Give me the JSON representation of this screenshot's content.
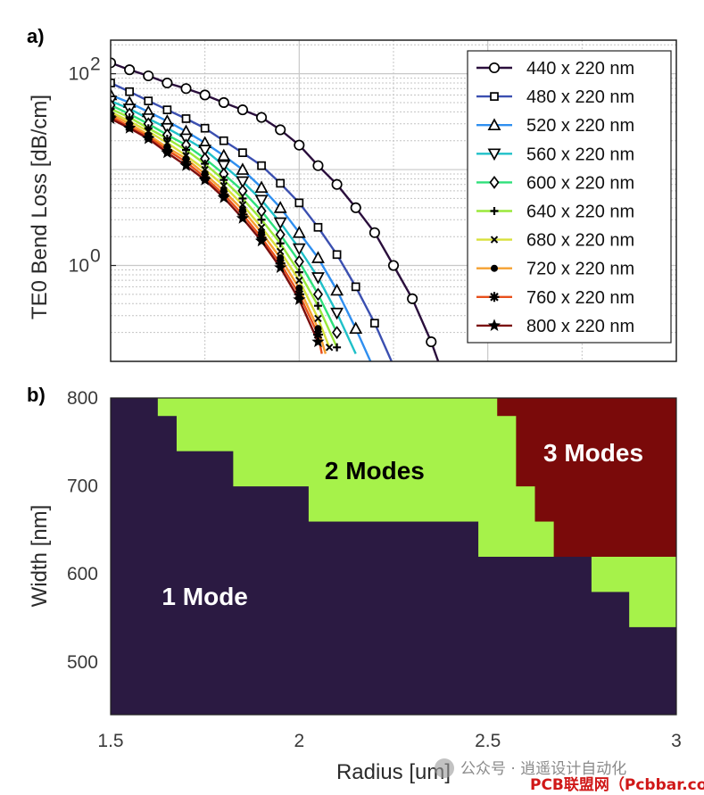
{
  "chart_data": [
    {
      "type": "line",
      "panel_label": "a)",
      "ylabel": "TE0 Bend Loss [dB/cm]",
      "yscale": "log",
      "xlim": [
        1.5,
        3
      ],
      "ylim_log10": [
        -1,
        2.35
      ],
      "ytick_labels": [
        {
          "exp": 0,
          "base": "10",
          "power": "0"
        },
        {
          "exp": 2,
          "base": "10",
          "power": "2"
        }
      ],
      "grid": true,
      "legend_position": "top-right",
      "series": [
        {
          "name": "440 x 220 nm",
          "color": "#2a0e3c",
          "marker": "circle",
          "x": [
            1.5,
            1.55,
            1.6,
            1.65,
            1.7,
            1.75,
            1.8,
            1.85,
            1.9,
            1.95,
            2.0,
            2.05,
            2.1,
            2.15,
            2.2,
            2.25,
            2.3,
            2.35,
            2.4,
            2.45,
            2.48
          ],
          "y": [
            130,
            110,
            95,
            80,
            70,
            60,
            50,
            42,
            35,
            26,
            18,
            11,
            7,
            4,
            2.2,
            1.0,
            0.45,
            0.16,
            0.045,
            0.012,
            0.005
          ]
        },
        {
          "name": "480 x 220 nm",
          "color": "#3b4fb0",
          "marker": "square",
          "x": [
            1.5,
            1.55,
            1.6,
            1.65,
            1.7,
            1.75,
            1.8,
            1.85,
            1.9,
            1.95,
            2.0,
            2.05,
            2.1,
            2.15,
            2.2,
            2.25,
            2.3
          ],
          "y": [
            80,
            65,
            52,
            42,
            34,
            27,
            20,
            15,
            11,
            7.2,
            4.5,
            2.5,
            1.3,
            0.6,
            0.25,
            0.09,
            0.03
          ]
        },
        {
          "name": "520 x 220 nm",
          "color": "#2f8ff0",
          "marker": "triangle-up",
          "x": [
            1.5,
            1.55,
            1.6,
            1.65,
            1.7,
            1.75,
            1.8,
            1.85,
            1.9,
            1.95,
            2.0,
            2.05,
            2.1,
            2.15,
            2.2
          ],
          "y": [
            60,
            50,
            40,
            32,
            25,
            19,
            14,
            10,
            6.5,
            4.0,
            2.2,
            1.2,
            0.55,
            0.22,
            0.08
          ]
        },
        {
          "name": "560 x 220 nm",
          "color": "#1fc0c8",
          "marker": "triangle-down",
          "x": [
            1.5,
            1.55,
            1.6,
            1.65,
            1.7,
            1.75,
            1.8,
            1.85,
            1.9,
            1.95,
            2.0,
            2.05,
            2.1,
            2.15
          ],
          "y": [
            52,
            43,
            34,
            27,
            21,
            16,
            11,
            7.5,
            4.8,
            2.8,
            1.5,
            0.75,
            0.32,
            0.12
          ]
        },
        {
          "name": "600 x 220 nm",
          "color": "#2ee07a",
          "marker": "diamond",
          "x": [
            1.5,
            1.55,
            1.6,
            1.65,
            1.7,
            1.75,
            1.8,
            1.85,
            1.9,
            1.95,
            2.0,
            2.05,
            2.1
          ],
          "y": [
            47,
            38,
            30,
            23,
            18,
            13,
            9,
            6,
            3.7,
            2.1,
            1.1,
            0.5,
            0.2
          ]
        },
        {
          "name": "640 x 220 nm",
          "color": "#9ae83a",
          "marker": "plus",
          "x": [
            1.5,
            1.55,
            1.6,
            1.65,
            1.7,
            1.75,
            1.8,
            1.85,
            1.9,
            1.95,
            2.0,
            2.05,
            2.1
          ],
          "y": [
            43,
            35,
            27,
            21,
            16,
            11.5,
            7.8,
            5.0,
            3.0,
            1.7,
            0.85,
            0.38,
            0.14
          ]
        },
        {
          "name": "680 x 220 nm",
          "color": "#d8e03a",
          "marker": "x",
          "x": [
            1.5,
            1.55,
            1.6,
            1.65,
            1.7,
            1.75,
            1.8,
            1.85,
            1.9,
            1.95,
            2.0,
            2.05,
            2.08
          ],
          "y": [
            40,
            32,
            25,
            19,
            14,
            10,
            6.8,
            4.3,
            2.5,
            1.4,
            0.7,
            0.28,
            0.14
          ]
        },
        {
          "name": "720 x 220 nm",
          "color": "#f5a030",
          "marker": "dot",
          "x": [
            1.5,
            1.55,
            1.6,
            1.65,
            1.7,
            1.75,
            1.8,
            1.85,
            1.9,
            1.95,
            2.0,
            2.05,
            2.07
          ],
          "y": [
            38,
            30,
            23,
            17,
            13,
            9,
            6,
            3.8,
            2.2,
            1.2,
            0.58,
            0.22,
            0.12
          ]
        },
        {
          "name": "760 x 220 nm",
          "color": "#e8501c",
          "marker": "asterisk",
          "x": [
            1.5,
            1.55,
            1.6,
            1.65,
            1.7,
            1.75,
            1.8,
            1.85,
            1.9,
            1.95,
            2.0,
            2.05,
            2.06
          ],
          "y": [
            36,
            28,
            22,
            16,
            12,
            8.3,
            5.5,
            3.4,
            1.95,
            1.05,
            0.5,
            0.19,
            0.12
          ]
        },
        {
          "name": "800 x 220 nm",
          "color": "#7a0e0e",
          "marker": "star",
          "x": [
            1.5,
            1.55,
            1.6,
            1.65,
            1.7,
            1.75,
            1.8,
            1.85,
            1.9,
            1.95,
            2.0,
            2.05
          ],
          "y": [
            34,
            27,
            21,
            15,
            11,
            7.8,
            5.1,
            3.1,
            1.8,
            0.95,
            0.44,
            0.16
          ]
        }
      ]
    },
    {
      "type": "heatmap",
      "panel_label": "b)",
      "xlabel": "Radius [um]",
      "ylabel": "Width [nm]",
      "xlim": [
        1.5,
        3
      ],
      "ylim": [
        440,
        800
      ],
      "xticks": [
        1.5,
        2,
        2.5,
        3
      ],
      "xtick_labels": [
        "1.5",
        "2",
        "2.5",
        "3"
      ],
      "yticks": [
        500,
        600,
        700,
        800
      ],
      "ytick_labels": [
        "500",
        "600",
        "700",
        "800"
      ],
      "colors": {
        "1": "#2b1a42",
        "2": "#a6f24a",
        "3": "#7a0a0a"
      },
      "regions": [
        {
          "modes": 1,
          "label": "1 Mode",
          "label_at": [
            1.75,
            575
          ],
          "label_color": "#ffffff"
        },
        {
          "modes": 2,
          "label": "2 Modes",
          "label_at": [
            2.2,
            718
          ],
          "label_color": "#000000"
        },
        {
          "modes": 3,
          "label": "3 Modes",
          "label_at": [
            2.78,
            738
          ],
          "label_color": "#ffffff"
        }
      ],
      "mode_boundaries": {
        "two_mode_min_radius_by_width": [
          {
            "width_min": 780,
            "width_max": 800,
            "radius": 1.625
          },
          {
            "width_min": 740,
            "width_max": 780,
            "radius": 1.675
          },
          {
            "width_min": 700,
            "width_max": 740,
            "radius": 1.825
          },
          {
            "width_min": 660,
            "width_max": 700,
            "radius": 2.025
          },
          {
            "width_min": 620,
            "width_max": 660,
            "radius": 2.475
          },
          {
            "width_min": 580,
            "width_max": 620,
            "radius": 2.775
          },
          {
            "width_min": 540,
            "width_max": 580,
            "radius": 2.875
          }
        ],
        "three_mode_min_radius_by_width": [
          {
            "width_min": 780,
            "width_max": 800,
            "radius": 2.525
          },
          {
            "width_min": 700,
            "width_max": 780,
            "radius": 2.575
          },
          {
            "width_min": 660,
            "width_max": 700,
            "radius": 2.625
          },
          {
            "width_min": 620,
            "width_max": 660,
            "radius": 2.675
          }
        ]
      }
    }
  ],
  "watermark": {
    "wechat": "公众号 · 逍遥设计自动化",
    "site": "PCB联盟网（Pcbbar.com）"
  }
}
